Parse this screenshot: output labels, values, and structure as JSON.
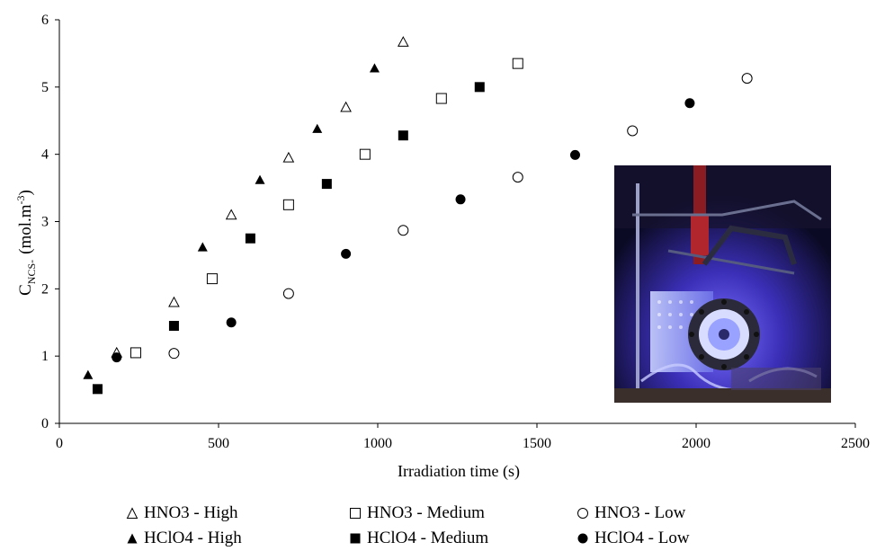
{
  "chart_data": {
    "type": "scatter",
    "xlabel": "Irradiation time (s)",
    "ylabel": {
      "main": "C",
      "sub": "NCS-",
      "unit_prefix": "(mol.m",
      "unit_sup": "-3",
      "unit_suffix": ")"
    },
    "xlim": [
      0,
      2500
    ],
    "ylim": [
      0,
      6
    ],
    "xticks": [
      0,
      500,
      1000,
      1500,
      2000,
      2500
    ],
    "yticks": [
      0,
      1,
      2,
      3,
      4,
      5,
      6
    ],
    "grid": false,
    "legend_position": "bottom",
    "series": [
      {
        "name": "HNO3 - High",
        "marker": "triangle-open",
        "x": [
          180,
          360,
          540,
          720,
          900,
          1080
        ],
        "y": [
          1.05,
          1.8,
          3.1,
          3.95,
          4.7,
          5.67
        ]
      },
      {
        "name": "HNO3 - Medium",
        "marker": "square-open",
        "x": [
          240,
          480,
          720,
          960,
          1200,
          1440
        ],
        "y": [
          1.05,
          2.15,
          3.25,
          4.0,
          4.83,
          5.35
        ]
      },
      {
        "name": "HNO3 - Low",
        "marker": "circle-open",
        "x": [
          360,
          720,
          1080,
          1440,
          1800,
          2160
        ],
        "y": [
          1.04,
          1.93,
          2.87,
          3.66,
          4.35,
          5.13
        ]
      },
      {
        "name": "HClO4 - High",
        "marker": "triangle-filled",
        "x": [
          90,
          450,
          630,
          810,
          990
        ],
        "y": [
          0.72,
          2.62,
          3.62,
          4.38,
          5.28
        ]
      },
      {
        "name": "HClO4 - Medium",
        "marker": "square-filled",
        "x": [
          120,
          360,
          600,
          840,
          1080,
          1320
        ],
        "y": [
          0.51,
          1.45,
          2.75,
          3.56,
          4.28,
          5.0
        ]
      },
      {
        "name": "HClO4 - Low",
        "marker": "circle-filled",
        "x": [
          180,
          540,
          900,
          1260,
          1620,
          1980
        ],
        "y": [
          0.98,
          1.5,
          2.52,
          3.33,
          3.99,
          4.76
        ]
      }
    ]
  },
  "legend": [
    {
      "label": "HNO3 - High",
      "marker": "triangle-open"
    },
    {
      "label": "HNO3 - Medium",
      "marker": "square-open"
    },
    {
      "label": "HNO3 - Low",
      "marker": "circle-open"
    },
    {
      "label": "HClO4 - High",
      "marker": "triangle-filled"
    },
    {
      "label": "HClO4 - Medium",
      "marker": "square-filled"
    },
    {
      "label": "HClO4 - Low",
      "marker": "circle-filled"
    }
  ],
  "inset_photo": {
    "icon": "photoreactor-setup-photo",
    "colors": {
      "glow": "#5a4df0",
      "frame": "#2a2a3a"
    }
  }
}
